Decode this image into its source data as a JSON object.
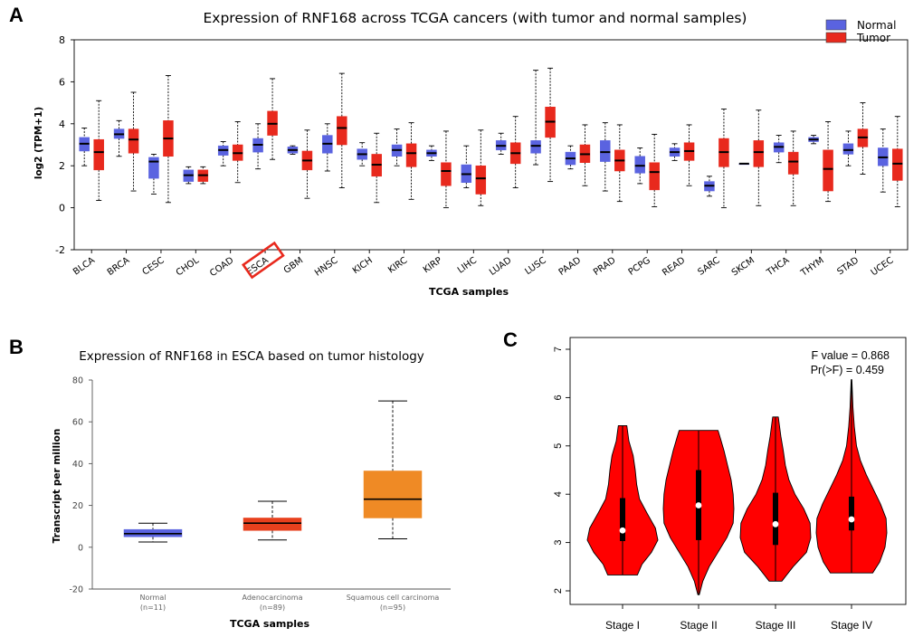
{
  "panels": {
    "a": {
      "letter": "A"
    },
    "b": {
      "letter": "B"
    },
    "c": {
      "letter": "C"
    }
  },
  "chart_data": [
    {
      "panel": "A",
      "type": "box",
      "title": "Expression of RNF168 across TCGA cancers (with tumor and normal samples)",
      "xlabel": "TCGA samples",
      "ylabel": "log2 (TPM+1)",
      "ylim": [
        -2,
        8
      ],
      "yticks": [
        -2,
        0,
        2,
        4,
        6,
        8
      ],
      "legend": {
        "position": "top-right",
        "entries": [
          {
            "name": "Normal",
            "color": "#5a63e0"
          },
          {
            "name": "Tumor",
            "color": "#e8291d"
          }
        ]
      },
      "highlighted_category": "ESCA",
      "categories": [
        "BLCA",
        "BRCA",
        "CESC",
        "CHOL",
        "COAD",
        "ESCA",
        "GBM",
        "HNSC",
        "KICH",
        "KIRC",
        "KIRP",
        "LIHC",
        "LUAD",
        "LUSC",
        "PAAD",
        "PRAD",
        "PCPG",
        "READ",
        "SARC",
        "SKCM",
        "THCA",
        "THYM",
        "STAD",
        "UCEC"
      ],
      "boxes": [
        {
          "cat": 0,
          "group": "Normal",
          "min": 2.0,
          "q1": 2.7,
          "median": 3.05,
          "q3": 3.35,
          "max": 3.8
        },
        {
          "cat": 0,
          "group": "Tumor",
          "min": 0.35,
          "q1": 1.8,
          "median": 2.65,
          "q3": 3.25,
          "max": 5.1
        },
        {
          "cat": 1,
          "group": "Normal",
          "min": 2.45,
          "q1": 3.3,
          "median": 3.5,
          "q3": 3.75,
          "max": 4.15
        },
        {
          "cat": 1,
          "group": "Tumor",
          "min": 0.8,
          "q1": 2.6,
          "median": 3.25,
          "q3": 3.75,
          "max": 5.5
        },
        {
          "cat": 2,
          "group": "Normal",
          "min": 0.65,
          "q1": 1.4,
          "median": 2.2,
          "q3": 2.4,
          "max": 2.55
        },
        {
          "cat": 2,
          "group": "Tumor",
          "min": 0.25,
          "q1": 2.45,
          "median": 3.3,
          "q3": 4.15,
          "max": 6.3
        },
        {
          "cat": 3,
          "group": "Normal",
          "min": 1.15,
          "q1": 1.25,
          "median": 1.55,
          "q3": 1.8,
          "max": 1.95
        },
        {
          "cat": 3,
          "group": "Tumor",
          "min": 1.15,
          "q1": 1.25,
          "median": 1.55,
          "q3": 1.8,
          "max": 1.95
        },
        {
          "cat": 4,
          "group": "Normal",
          "min": 2.0,
          "q1": 2.5,
          "median": 2.75,
          "q3": 2.95,
          "max": 3.15
        },
        {
          "cat": 4,
          "group": "Tumor",
          "min": 1.2,
          "q1": 2.25,
          "median": 2.6,
          "q3": 3.0,
          "max": 4.1
        },
        {
          "cat": 5,
          "group": "Normal",
          "min": 1.85,
          "q1": 2.65,
          "median": 3.0,
          "q3": 3.3,
          "max": 4.0
        },
        {
          "cat": 5,
          "group": "Tumor",
          "min": 2.3,
          "q1": 3.45,
          "median": 4.0,
          "q3": 4.6,
          "max": 6.15
        },
        {
          "cat": 6,
          "group": "Normal",
          "min": 2.55,
          "q1": 2.6,
          "median": 2.75,
          "q3": 2.9,
          "max": 2.95
        },
        {
          "cat": 6,
          "group": "Tumor",
          "min": 0.45,
          "q1": 1.8,
          "median": 2.25,
          "q3": 2.7,
          "max": 3.7
        },
        {
          "cat": 7,
          "group": "Normal",
          "min": 1.75,
          "q1": 2.6,
          "median": 3.05,
          "q3": 3.45,
          "max": 4.0
        },
        {
          "cat": 7,
          "group": "Tumor",
          "min": 0.95,
          "q1": 3.0,
          "median": 3.8,
          "q3": 4.35,
          "max": 6.4
        },
        {
          "cat": 8,
          "group": "Normal",
          "min": 2.0,
          "q1": 2.3,
          "median": 2.55,
          "q3": 2.8,
          "max": 3.1
        },
        {
          "cat": 8,
          "group": "Tumor",
          "min": 0.25,
          "q1": 1.5,
          "median": 2.05,
          "q3": 2.55,
          "max": 3.55
        },
        {
          "cat": 9,
          "group": "Normal",
          "min": 2.0,
          "q1": 2.45,
          "median": 2.75,
          "q3": 3.0,
          "max": 3.75
        },
        {
          "cat": 9,
          "group": "Tumor",
          "min": 0.4,
          "q1": 1.95,
          "median": 2.6,
          "q3": 3.05,
          "max": 4.05
        },
        {
          "cat": 10,
          "group": "Normal",
          "min": 2.25,
          "q1": 2.45,
          "median": 2.6,
          "q3": 2.75,
          "max": 2.95
        },
        {
          "cat": 10,
          "group": "Tumor",
          "min": 0.0,
          "q1": 1.05,
          "median": 1.75,
          "q3": 2.15,
          "max": 3.65
        },
        {
          "cat": 11,
          "group": "Normal",
          "min": 0.95,
          "q1": 1.2,
          "median": 1.6,
          "q3": 2.05,
          "max": 2.95
        },
        {
          "cat": 11,
          "group": "Tumor",
          "min": 0.1,
          "q1": 0.65,
          "median": 1.4,
          "q3": 2.0,
          "max": 3.7
        },
        {
          "cat": 12,
          "group": "Normal",
          "min": 2.55,
          "q1": 2.75,
          "median": 2.95,
          "q3": 3.2,
          "max": 3.55
        },
        {
          "cat": 12,
          "group": "Tumor",
          "min": 0.95,
          "q1": 2.1,
          "median": 2.6,
          "q3": 3.1,
          "max": 4.35
        },
        {
          "cat": 13,
          "group": "Normal",
          "min": 2.05,
          "q1": 2.6,
          "median": 2.95,
          "q3": 3.2,
          "max": 6.55
        },
        {
          "cat": 13,
          "group": "Tumor",
          "min": 1.25,
          "q1": 3.35,
          "median": 4.1,
          "q3": 4.8,
          "max": 6.65
        },
        {
          "cat": 14,
          "group": "Normal",
          "min": 1.85,
          "q1": 2.05,
          "median": 2.35,
          "q3": 2.65,
          "max": 2.95
        },
        {
          "cat": 14,
          "group": "Tumor",
          "min": 1.05,
          "q1": 2.15,
          "median": 2.55,
          "q3": 3.0,
          "max": 3.95
        },
        {
          "cat": 15,
          "group": "Normal",
          "min": 0.8,
          "q1": 2.2,
          "median": 2.65,
          "q3": 3.2,
          "max": 4.05
        },
        {
          "cat": 15,
          "group": "Tumor",
          "min": 0.3,
          "q1": 1.75,
          "median": 2.25,
          "q3": 2.75,
          "max": 3.95
        },
        {
          "cat": 16,
          "group": "Normal",
          "min": 1.15,
          "q1": 1.65,
          "median": 2.0,
          "q3": 2.45,
          "max": 2.85
        },
        {
          "cat": 16,
          "group": "Tumor",
          "min": 0.05,
          "q1": 0.85,
          "median": 1.7,
          "q3": 2.15,
          "max": 3.5
        },
        {
          "cat": 17,
          "group": "Normal",
          "min": 2.25,
          "q1": 2.45,
          "median": 2.65,
          "q3": 2.85,
          "max": 3.05
        },
        {
          "cat": 17,
          "group": "Tumor",
          "min": 1.05,
          "q1": 2.25,
          "median": 2.7,
          "q3": 3.1,
          "max": 3.95
        },
        {
          "cat": 18,
          "group": "Normal",
          "min": 0.55,
          "q1": 0.8,
          "median": 1.05,
          "q3": 1.25,
          "max": 1.5
        },
        {
          "cat": 18,
          "group": "Tumor",
          "min": 0.0,
          "q1": 1.95,
          "median": 2.65,
          "q3": 3.3,
          "max": 4.7
        },
        {
          "cat": 19,
          "group": "Normal",
          "min": 2.1,
          "q1": 2.1,
          "median": 2.1,
          "q3": 2.1,
          "max": 2.1
        },
        {
          "cat": 19,
          "group": "Tumor",
          "min": 0.1,
          "q1": 1.95,
          "median": 2.65,
          "q3": 3.2,
          "max": 4.65
        },
        {
          "cat": 20,
          "group": "Normal",
          "min": 2.15,
          "q1": 2.65,
          "median": 2.9,
          "q3": 3.1,
          "max": 3.45
        },
        {
          "cat": 20,
          "group": "Tumor",
          "min": 0.1,
          "q1": 1.6,
          "median": 2.2,
          "q3": 2.65,
          "max": 3.65
        },
        {
          "cat": 21,
          "group": "Normal",
          "min": 3.05,
          "q1": 3.15,
          "median": 3.25,
          "q3": 3.35,
          "max": 3.45
        },
        {
          "cat": 21,
          "group": "Tumor",
          "min": 0.3,
          "q1": 0.8,
          "median": 1.85,
          "q3": 2.75,
          "max": 4.1
        },
        {
          "cat": 22,
          "group": "Normal",
          "min": 2.0,
          "q1": 2.55,
          "median": 2.75,
          "q3": 3.05,
          "max": 3.65
        },
        {
          "cat": 22,
          "group": "Tumor",
          "min": 1.6,
          "q1": 2.9,
          "median": 3.35,
          "q3": 3.75,
          "max": 5.0
        },
        {
          "cat": 23,
          "group": "Normal",
          "min": 0.75,
          "q1": 2.0,
          "median": 2.4,
          "q3": 2.85,
          "max": 3.75
        },
        {
          "cat": 23,
          "group": "Tumor",
          "min": 0.05,
          "q1": 1.3,
          "median": 2.1,
          "q3": 2.8,
          "max": 4.35
        }
      ]
    },
    {
      "panel": "B",
      "type": "box",
      "title": "Expression of RNF168 in ESCA based on tumor histology",
      "xlabel": "TCGA samples",
      "ylabel": "Transcript per million",
      "ylim": [
        -20,
        80
      ],
      "yticks": [
        -20,
        0,
        20,
        40,
        60,
        80
      ],
      "categories": [
        "Normal",
        "Adenocarcinoma",
        "Squamous cell carcinoma"
      ],
      "sample_sizes": [
        "(n=11)",
        "(n=89)",
        "(n=95)"
      ],
      "boxes": [
        {
          "cat": 0,
          "color": "#5a63e0",
          "min": 2.5,
          "q1": 5.0,
          "median": 6.5,
          "q3": 8.5,
          "max": 11.5
        },
        {
          "cat": 1,
          "color": "#e8401d",
          "min": 3.5,
          "q1": 8.0,
          "median": 11.5,
          "q3": 14.0,
          "max": 22.0
        },
        {
          "cat": 2,
          "color": "#ef8a25",
          "min": 4.0,
          "q1": 14.0,
          "median": 23.0,
          "q3": 36.5,
          "max": 70.0
        }
      ]
    },
    {
      "panel": "C",
      "type": "violin",
      "ylim": [
        2,
        7
      ],
      "yticks": [
        2,
        3,
        4,
        5,
        6,
        7
      ],
      "categories": [
        "Stage I",
        "Stage II",
        "Stage III",
        "Stage IV"
      ],
      "annotation": [
        "F value = 0.868",
        "Pr(>F) = 0.459"
      ],
      "fill_color": "#ff0000",
      "violins": [
        {
          "cat": 0,
          "min": 2.33,
          "max": 5.42,
          "q1": 3.03,
          "median": 3.25,
          "q3": 3.92,
          "profile": [
            [
              2.33,
              0.42
            ],
            [
              2.55,
              0.55
            ],
            [
              2.8,
              0.82
            ],
            [
              3.05,
              1.0
            ],
            [
              3.3,
              0.93
            ],
            [
              3.6,
              0.7
            ],
            [
              3.9,
              0.48
            ],
            [
              4.2,
              0.4
            ],
            [
              4.5,
              0.36
            ],
            [
              4.8,
              0.3
            ],
            [
              5.1,
              0.18
            ],
            [
              5.42,
              0.12
            ]
          ]
        },
        {
          "cat": 1,
          "min": 1.92,
          "max": 5.32,
          "q1": 3.05,
          "median": 3.77,
          "q3": 4.5,
          "profile": [
            [
              1.92,
              0.02
            ],
            [
              2.2,
              0.12
            ],
            [
              2.5,
              0.3
            ],
            [
              2.8,
              0.55
            ],
            [
              3.1,
              0.8
            ],
            [
              3.4,
              0.98
            ],
            [
              3.7,
              1.0
            ],
            [
              4.0,
              0.98
            ],
            [
              4.3,
              0.92
            ],
            [
              4.6,
              0.82
            ],
            [
              4.9,
              0.72
            ],
            [
              5.15,
              0.62
            ],
            [
              5.32,
              0.55
            ]
          ]
        },
        {
          "cat": 2,
          "min": 2.2,
          "max": 5.6,
          "q1": 2.95,
          "median": 3.38,
          "q3": 4.03,
          "profile": [
            [
              2.2,
              0.18
            ],
            [
              2.5,
              0.5
            ],
            [
              2.8,
              0.88
            ],
            [
              3.1,
              1.0
            ],
            [
              3.4,
              0.98
            ],
            [
              3.7,
              0.8
            ],
            [
              4.0,
              0.55
            ],
            [
              4.3,
              0.38
            ],
            [
              4.6,
              0.28
            ],
            [
              4.9,
              0.22
            ],
            [
              5.2,
              0.15
            ],
            [
              5.6,
              0.08
            ]
          ]
        },
        {
          "cat": 3,
          "min": 2.37,
          "max": 6.37,
          "q1": 3.25,
          "median": 3.48,
          "q3": 3.95,
          "profile": [
            [
              2.37,
              0.6
            ],
            [
              2.6,
              0.8
            ],
            [
              2.9,
              0.95
            ],
            [
              3.2,
              1.0
            ],
            [
              3.5,
              0.98
            ],
            [
              3.8,
              0.82
            ],
            [
              4.1,
              0.62
            ],
            [
              4.4,
              0.42
            ],
            [
              4.7,
              0.25
            ],
            [
              5.0,
              0.14
            ],
            [
              5.4,
              0.08
            ],
            [
              5.8,
              0.04
            ],
            [
              6.37,
              0.01
            ]
          ]
        }
      ]
    }
  ]
}
